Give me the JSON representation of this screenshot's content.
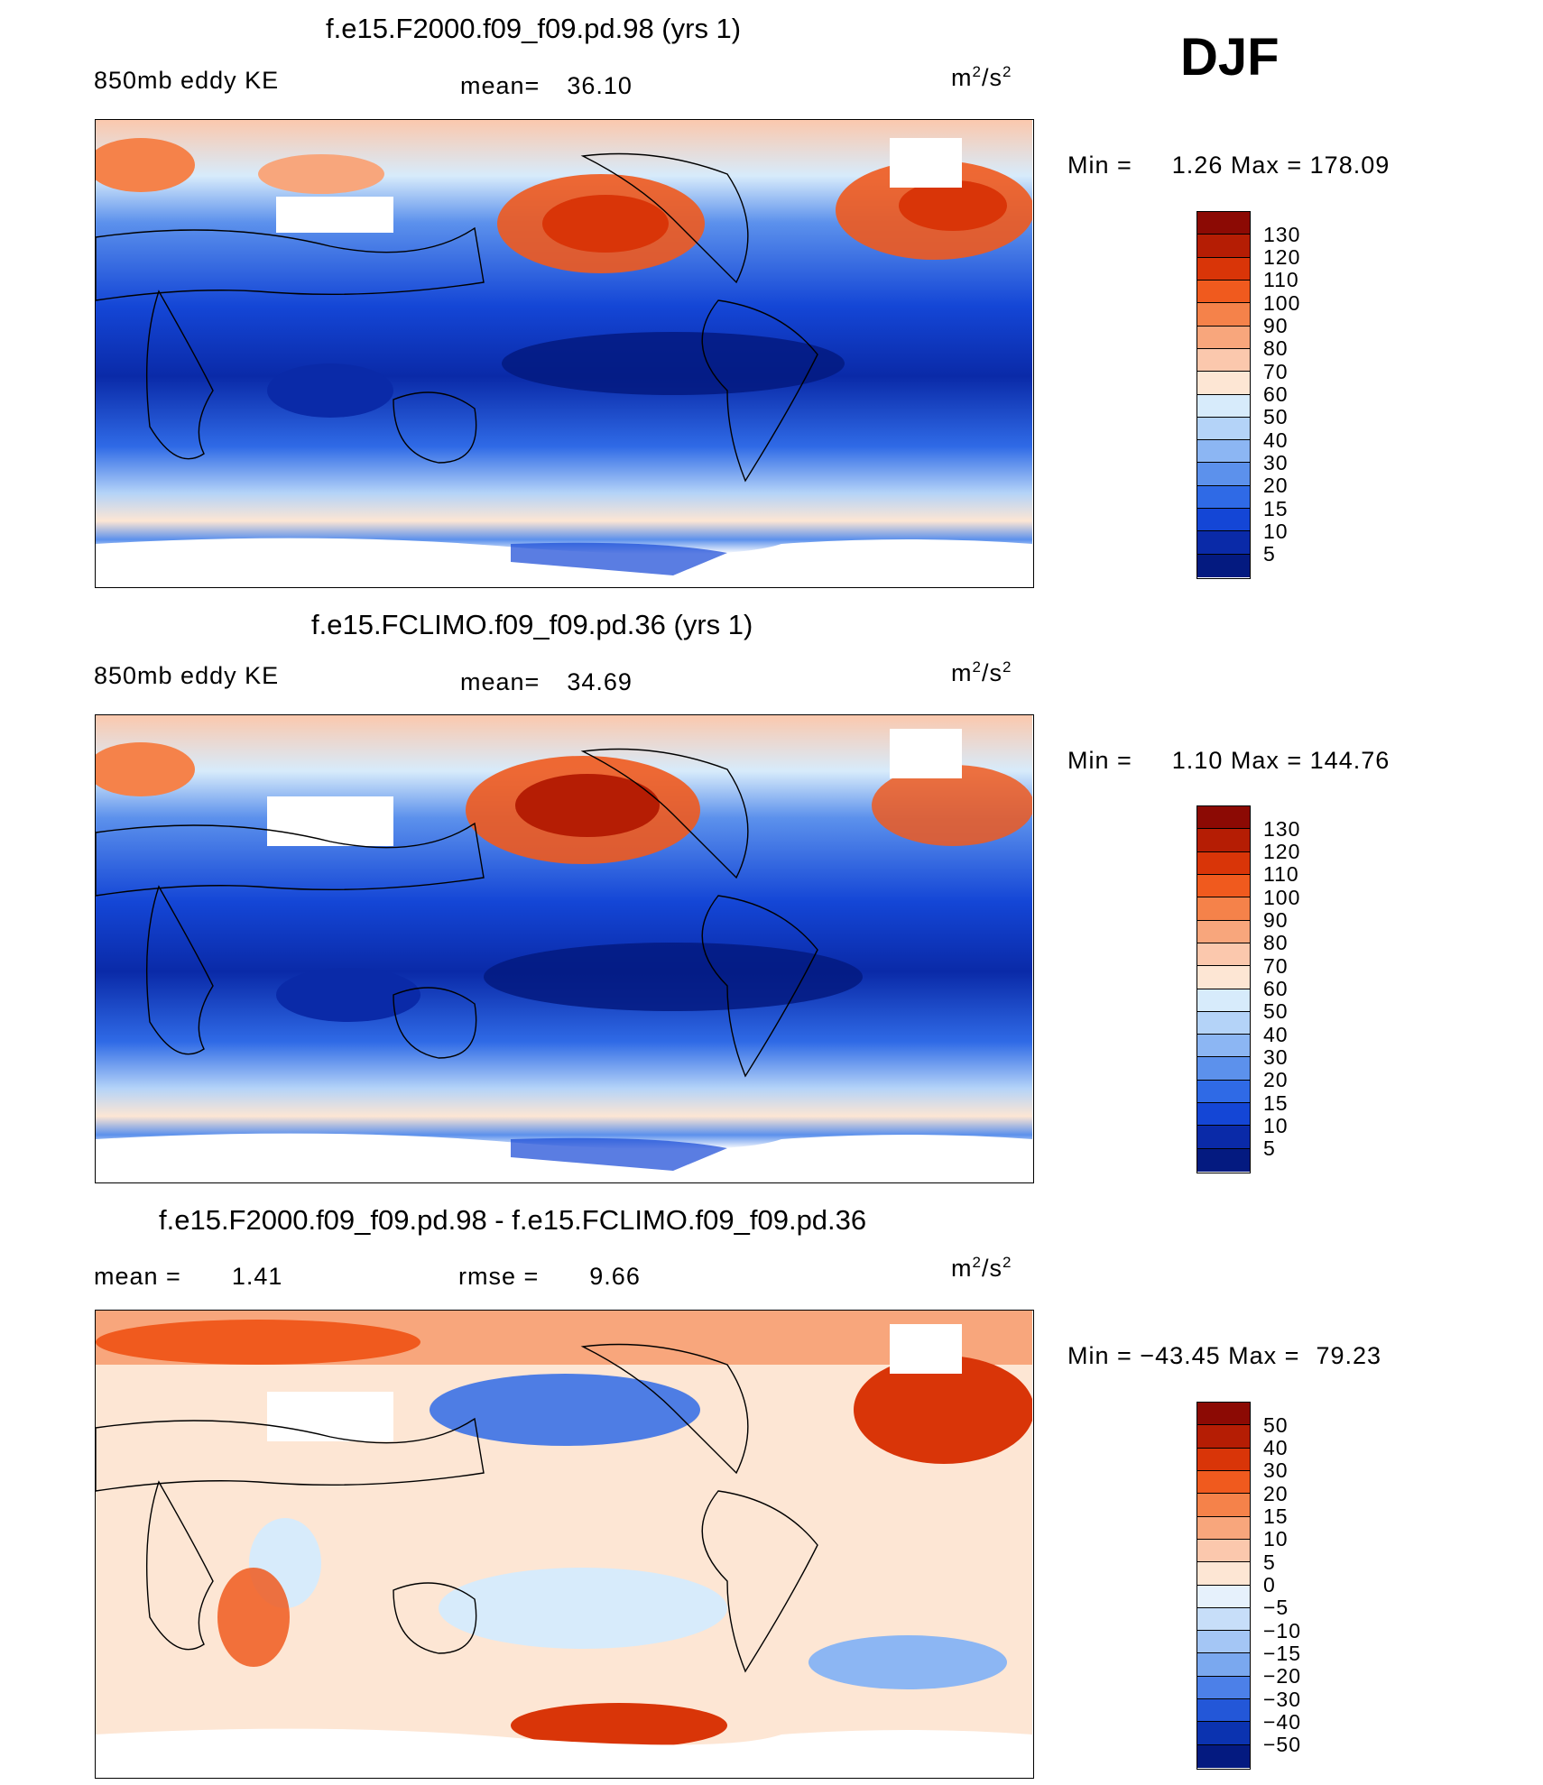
{
  "season": "DJF",
  "panels": [
    {
      "title": "f.e15.F2000.f09_f09.pd.98 (yrs 1)",
      "left_label": "850mb eddy KE",
      "center_prefix": "mean=",
      "center_value": "36.10",
      "units": "m²/s²",
      "min_label": "Min =",
      "min_value": "1.26",
      "max_label": "Max =",
      "max_value": "178.09",
      "colorbar": {
        "ticks": [
          "130",
          "120",
          "110",
          "100",
          "90",
          "80",
          "70",
          "60",
          "50",
          "40",
          "30",
          "20",
          "15",
          "10",
          "5"
        ],
        "colors": [
          "#8c0a04",
          "#b51d04",
          "#d93508",
          "#f05a1e",
          "#f5824a",
          "#f8a67c",
          "#fbc8ad",
          "#fde6d4",
          "#d7ebfb",
          "#b4d3f8",
          "#8cb6f3",
          "#5c91ec",
          "#2f6ae6",
          "#1446d6",
          "#0a2aa8",
          "#041a80"
        ]
      }
    },
    {
      "title": "f.e15.FCLIMO.f09_f09.pd.36 (yrs 1)",
      "left_label": "850mb eddy KE",
      "center_prefix": "mean=",
      "center_value": "34.69",
      "units": "m²/s²",
      "min_label": "Min =",
      "min_value": "1.10",
      "max_label": "Max =",
      "max_value": "144.76",
      "colorbar": {
        "ticks": [
          "130",
          "120",
          "110",
          "100",
          "90",
          "80",
          "70",
          "60",
          "50",
          "40",
          "30",
          "20",
          "15",
          "10",
          "5"
        ],
        "colors": [
          "#8c0a04",
          "#b51d04",
          "#d93508",
          "#f05a1e",
          "#f5824a",
          "#f8a67c",
          "#fbc8ad",
          "#fde6d4",
          "#d7ebfb",
          "#b4d3f8",
          "#8cb6f3",
          "#5c91ec",
          "#2f6ae6",
          "#1446d6",
          "#0a2aa8",
          "#041a80"
        ]
      }
    },
    {
      "title": "f.e15.F2000.f09_f09.pd.98 - f.e15.FCLIMO.f09_f09.pd.36",
      "left_prefix": "mean =",
      "left_value": "1.41",
      "center_prefix": "rmse =",
      "center_value": "9.66",
      "units": "m²/s²",
      "min_label": "Min =",
      "min_value": "−43.45",
      "max_label": "Max =",
      "max_value": "79.23",
      "colorbar": {
        "ticks": [
          "50",
          "40",
          "30",
          "20",
          "15",
          "10",
          "5",
          "0",
          "−5",
          "−10",
          "−15",
          "−20",
          "−30",
          "−40",
          "−50"
        ],
        "colors": [
          "#8c0a04",
          "#b51d04",
          "#d93508",
          "#f05a1e",
          "#f5824a",
          "#f8a67c",
          "#fbc8ad",
          "#fde6d4",
          "#e6f1fc",
          "#c7def9",
          "#a4c6f5",
          "#7aa8ef",
          "#4c80e8",
          "#2357d8",
          "#0b33b0",
          "#041a80"
        ]
      }
    }
  ]
}
